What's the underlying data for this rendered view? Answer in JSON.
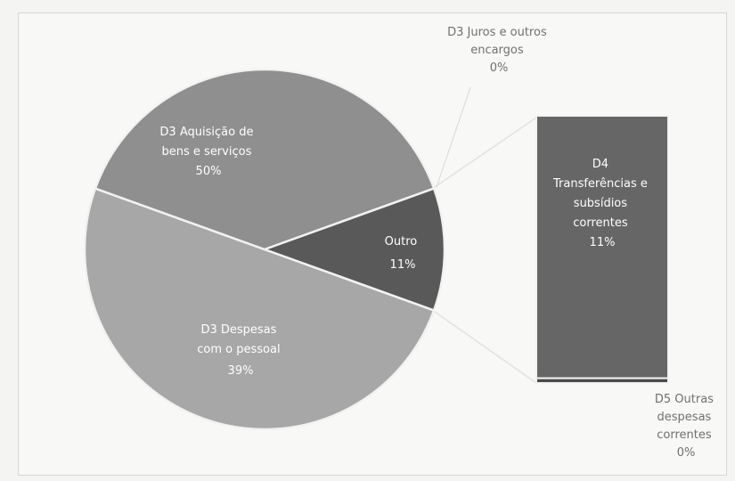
{
  "chart_data": {
    "type": "pie",
    "subtype": "bar-of-pie",
    "slices": [
      {
        "label_lines": [
          "D3 Aquisição de",
          "bens e serviços"
        ],
        "percent_label": "50%",
        "value": 50,
        "color": "#a7a7a7"
      },
      {
        "label_lines": [
          "D3 Despesas",
          "com o pessoal"
        ],
        "percent_label": "39%",
        "value": 39,
        "color": "#8f8f8f"
      },
      {
        "label_lines": [
          "Outro"
        ],
        "percent_label": "11%",
        "value": 11,
        "color": "#595959"
      },
      {
        "label_lines": [
          "D3 Juros e outros",
          "encargos"
        ],
        "percent_label": "0%",
        "value": 0,
        "color": "#b5b5b5"
      }
    ],
    "bar_breakdown": [
      {
        "label_lines": [
          "D4",
          "Transferências e",
          "subsídios",
          "correntes"
        ],
        "percent_label": "11%",
        "value": 11,
        "color": "#666666"
      },
      {
        "label_lines": [
          "D5 Outras",
          "despesas",
          "correntes"
        ],
        "percent_label": "0%",
        "value": 0.2,
        "color": "#4a4a4a"
      }
    ],
    "connector_color": "#e0e0e0"
  }
}
